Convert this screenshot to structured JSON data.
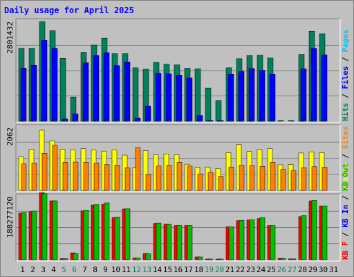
{
  "chart_data": {
    "type": "bar",
    "title": "Daily usage for April 2025",
    "categories": [
      "1",
      "2",
      "3",
      "4",
      "5",
      "6",
      "7",
      "8",
      "9",
      "10",
      "11",
      "12",
      "13",
      "14",
      "15",
      "16",
      "17",
      "18",
      "19",
      "20",
      "21",
      "22",
      "23",
      "24",
      "25",
      "26",
      "27",
      "28",
      "29",
      "30",
      "31"
    ],
    "weekend_days": [
      "5",
      "6",
      "12",
      "13",
      "19",
      "20",
      "26",
      "27"
    ],
    "colors": {
      "title": "#0000ff",
      "hits": "#00805c",
      "files": "#0000ff",
      "pages": "#00c0ff",
      "visits": "#ffff00",
      "sites": "#ff8000",
      "kbout": "#00c000",
      "kbin": "#0000ff",
      "kbf": "#ff0000",
      "kb": "#ff0000",
      "weekend_label": "#00805c",
      "weekday_label": "#000000",
      "panel_bg": "#c0c0c0"
    },
    "panels": [
      {
        "name": "hits-files-pages",
        "axis_label": "2801432",
        "ymax": 2801432,
        "legend": [
          {
            "text": "Hits",
            "color": "#00805c"
          },
          {
            "text": " / ",
            "color": "#000000"
          },
          {
            "text": "Files",
            "color": "#0000ff"
          },
          {
            "text": " / ",
            "color": "#000000"
          },
          {
            "text": "Pages",
            "color": "#00c0ff"
          }
        ],
        "series": [
          {
            "name": "Hits",
            "color": "#00805c",
            "values": [
              2020000,
              2020000,
              2760000,
              2510000,
              1740000,
              670000,
              1910000,
              2110000,
              2300000,
              1870000,
              1870000,
              1480000,
              1440000,
              1630000,
              1580000,
              1560000,
              1470000,
              1450000,
              920000,
              570000,
              1480000,
              1730000,
              1820000,
              1830000,
              1750000,
              3000,
              3000,
              1850000,
              2490000,
              2420000,
              0
            ],
            "mask": [
              1,
              1,
              1,
              1,
              1,
              1,
              1,
              1,
              1,
              1,
              1,
              1,
              1,
              1,
              1,
              1,
              1,
              1,
              1,
              1,
              1,
              1,
              1,
              1,
              1,
              1,
              1,
              1,
              1,
              1,
              0
            ]
          },
          {
            "name": "Files",
            "color": "#0000ff",
            "values": [
              1470000,
              1550000,
              2240000,
              2020000,
              60000,
              200000,
              1620000,
              1820000,
              1900000,
              1540000,
              1640000,
              90000,
              420000,
              1330000,
              1310000,
              1280000,
              1200000,
              160000,
              25000,
              25000,
              1300000,
              1380000,
              1460000,
              1410000,
              1300000,
              0,
              0,
              1450000,
              2020000,
              1840000,
              0
            ],
            "mask": [
              1,
              1,
              1,
              1,
              1,
              1,
              1,
              1,
              1,
              1,
              1,
              1,
              1,
              1,
              1,
              1,
              1,
              1,
              1,
              1,
              1,
              1,
              1,
              1,
              1,
              0,
              0,
              1,
              1,
              1,
              0
            ]
          },
          {
            "name": "Pages",
            "color": "#00c0ff",
            "values": [
              10000,
              10000,
              10000,
              10000,
              5000,
              5000,
              10000,
              10000,
              10000,
              10000,
              10000,
              5000,
              5000,
              10000,
              10000,
              10000,
              10000,
              5000,
              5000,
              5000,
              10000,
              10000,
              10000,
              10000,
              10000,
              0,
              0,
              10000,
              10000,
              10000,
              0
            ],
            "mask": [
              1,
              1,
              1,
              1,
              1,
              1,
              1,
              1,
              1,
              1,
              1,
              1,
              1,
              1,
              1,
              1,
              1,
              1,
              1,
              1,
              1,
              1,
              1,
              1,
              1,
              0,
              0,
              1,
              1,
              1,
              0
            ]
          }
        ]
      },
      {
        "name": "visits-sites",
        "axis_label": "2062",
        "ymax": 2062,
        "legend": [
          {
            "text": "Visits",
            "color": "#ffff00"
          },
          {
            "text": " / ",
            "color": "#000000"
          },
          {
            "text": "Sites",
            "color": "#ff8000"
          }
        ],
        "series": [
          {
            "name": "Visits",
            "color": "#ffff00",
            "values": [
              1070,
              1320,
              1930,
              1580,
              1320,
              1300,
              1340,
              1290,
              1260,
              1300,
              1130,
              740,
              1270,
              1140,
              1170,
              1140,
              840,
              740,
              750,
              700,
              1210,
              1470,
              1250,
              1310,
              1340,
              820,
              830,
              1200,
              1230,
              1210,
              0
            ],
            "mask": [
              1,
              1,
              1,
              1,
              1,
              1,
              1,
              1,
              1,
              1,
              1,
              1,
              1,
              1,
              1,
              1,
              1,
              1,
              1,
              1,
              1,
              1,
              1,
              1,
              1,
              1,
              1,
              1,
              1,
              1,
              0
            ]
          },
          {
            "name": "Sites",
            "color": "#ff8000",
            "values": [
              850,
              880,
              1190,
              1450,
              900,
              910,
              900,
              880,
              830,
              810,
              730,
              1370,
              520,
              780,
              810,
              900,
              780,
              530,
              580,
              450,
              750,
              810,
              800,
              770,
              900,
              670,
              630,
              730,
              760,
              740,
              0
            ],
            "mask": [
              1,
              1,
              1,
              1,
              1,
              1,
              1,
              1,
              1,
              1,
              1,
              1,
              1,
              1,
              1,
              1,
              1,
              1,
              1,
              1,
              1,
              1,
              1,
              1,
              1,
              1,
              1,
              1,
              1,
              1,
              0
            ]
          }
        ]
      },
      {
        "name": "kbf-kbin-kbout",
        "axis_label": "188277120",
        "ymax": 188277120,
        "legend": [
          {
            "text": "KB F",
            "color": "#ff0000"
          },
          {
            "text": " / ",
            "color": "#000000"
          },
          {
            "text": "KB In",
            "color": "#0000ff"
          },
          {
            "text": " / ",
            "color": "#000000"
          },
          {
            "text": "KB Out",
            "color": "#00c000"
          }
        ],
        "series": [
          {
            "name": "KB F",
            "color": "#ff0000",
            "values": [
              136000000,
              140000000,
              196000000,
              172000000,
              3000000,
              20000000,
              143000000,
              160000000,
              162000000,
              123000000,
              148000000,
              5000000,
              18000000,
              106000000,
              104000000,
              100000000,
              100000000,
              8000000,
              1500000,
              1500000,
              96000000,
              114000000,
              116000000,
              120000000,
              100000000,
              4000000,
              2500000,
              126000000,
              172000000,
              157000000,
              0
            ],
            "mask": [
              1,
              1,
              1,
              1,
              1,
              1,
              1,
              1,
              1,
              1,
              1,
              1,
              1,
              1,
              1,
              1,
              1,
              1,
              1,
              1,
              1,
              1,
              1,
              1,
              1,
              1,
              1,
              1,
              1,
              1,
              0
            ]
          },
          {
            "name": "KB Out",
            "color": "#00c000",
            "values": [
              138000000,
              142000000,
              193000000,
              172000000,
              3000000,
              18000000,
              145000000,
              161000000,
              166000000,
              125000000,
              149000000,
              5000000,
              17000000,
              107000000,
              103000000,
              100000000,
              100000000,
              8000000,
              1500000,
              1500000,
              96000000,
              115000000,
              117000000,
              123000000,
              100000000,
              3500000,
              2500000,
              129000000,
              173000000,
              157000000,
              0
            ],
            "mask": [
              1,
              1,
              1,
              1,
              1,
              1,
              1,
              1,
              1,
              1,
              1,
              1,
              1,
              1,
              1,
              1,
              1,
              1,
              1,
              1,
              1,
              1,
              1,
              1,
              1,
              1,
              1,
              1,
              1,
              1,
              0
            ]
          }
        ]
      }
    ]
  }
}
